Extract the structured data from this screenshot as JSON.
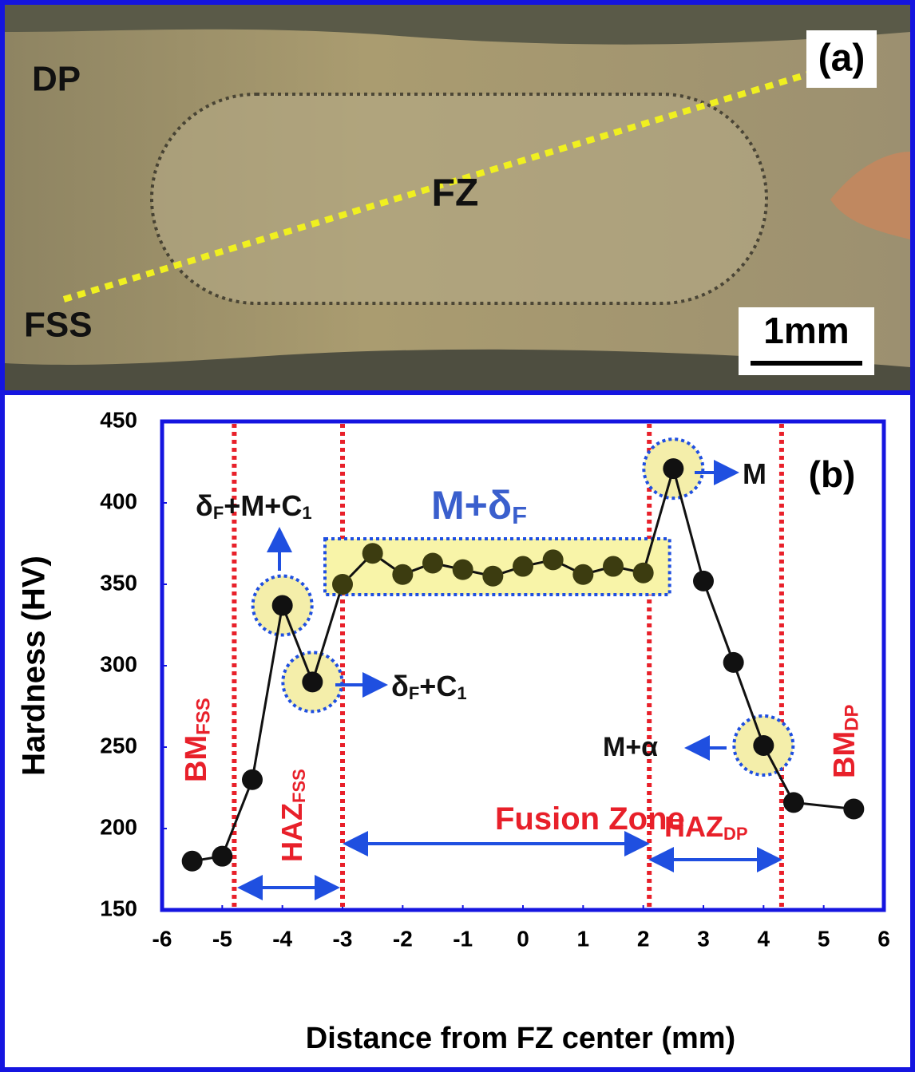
{
  "micrograph": {
    "label": "(a)",
    "regions": [
      "DP",
      "FZ",
      "FSS"
    ],
    "scale_bar": "1mm"
  },
  "chart_data": {
    "type": "line",
    "panel_label": "(b)",
    "x_label": "Distance from FZ center (mm)",
    "y_label": "Hardness (HV)",
    "x": [
      -5.5,
      -5,
      -4.5,
      -4,
      -3.5,
      -3,
      -2.5,
      -2,
      -1.5,
      -1,
      -0.5,
      0,
      0.5,
      1,
      1.5,
      2,
      2.5,
      3,
      3.5,
      4,
      4.5,
      5.5
    ],
    "values": [
      180,
      183,
      230,
      337,
      290,
      350,
      369,
      356,
      363,
      359,
      355,
      361,
      365,
      356,
      361,
      357,
      421,
      352,
      302,
      251,
      216,
      212
    ],
    "color": "#111111",
    "xlim": [
      -6,
      6
    ],
    "xticks": [
      -6,
      -5,
      -4,
      -3,
      -2,
      -1,
      0,
      1,
      2,
      3,
      4,
      5,
      6
    ],
    "ylim": [
      150,
      450
    ],
    "yticks": [
      150,
      200,
      250,
      300,
      350,
      400,
      450
    ],
    "boundaries": [
      -4.8,
      -3,
      2.1,
      4.3
    ],
    "annotations": [
      {
        "parts": [
          "δ",
          "F",
          "+M+C",
          "1"
        ]
      },
      {
        "parts": [
          "M+δ",
          "F"
        ]
      },
      {
        "parts": [
          "δ",
          "F",
          "+C",
          "1"
        ]
      },
      {
        "parts": [
          "M"
        ]
      },
      {
        "parts": [
          "M+α"
        ]
      },
      {
        "parts": [
          "BM",
          "FSS"
        ]
      },
      {
        "parts": [
          "HAZ",
          "FSS"
        ]
      },
      {
        "parts": [
          "Fusion Zone"
        ]
      },
      {
        "parts": [
          "HAZ",
          "DP"
        ]
      },
      {
        "parts": [
          "BM",
          "DP"
        ]
      }
    ]
  }
}
